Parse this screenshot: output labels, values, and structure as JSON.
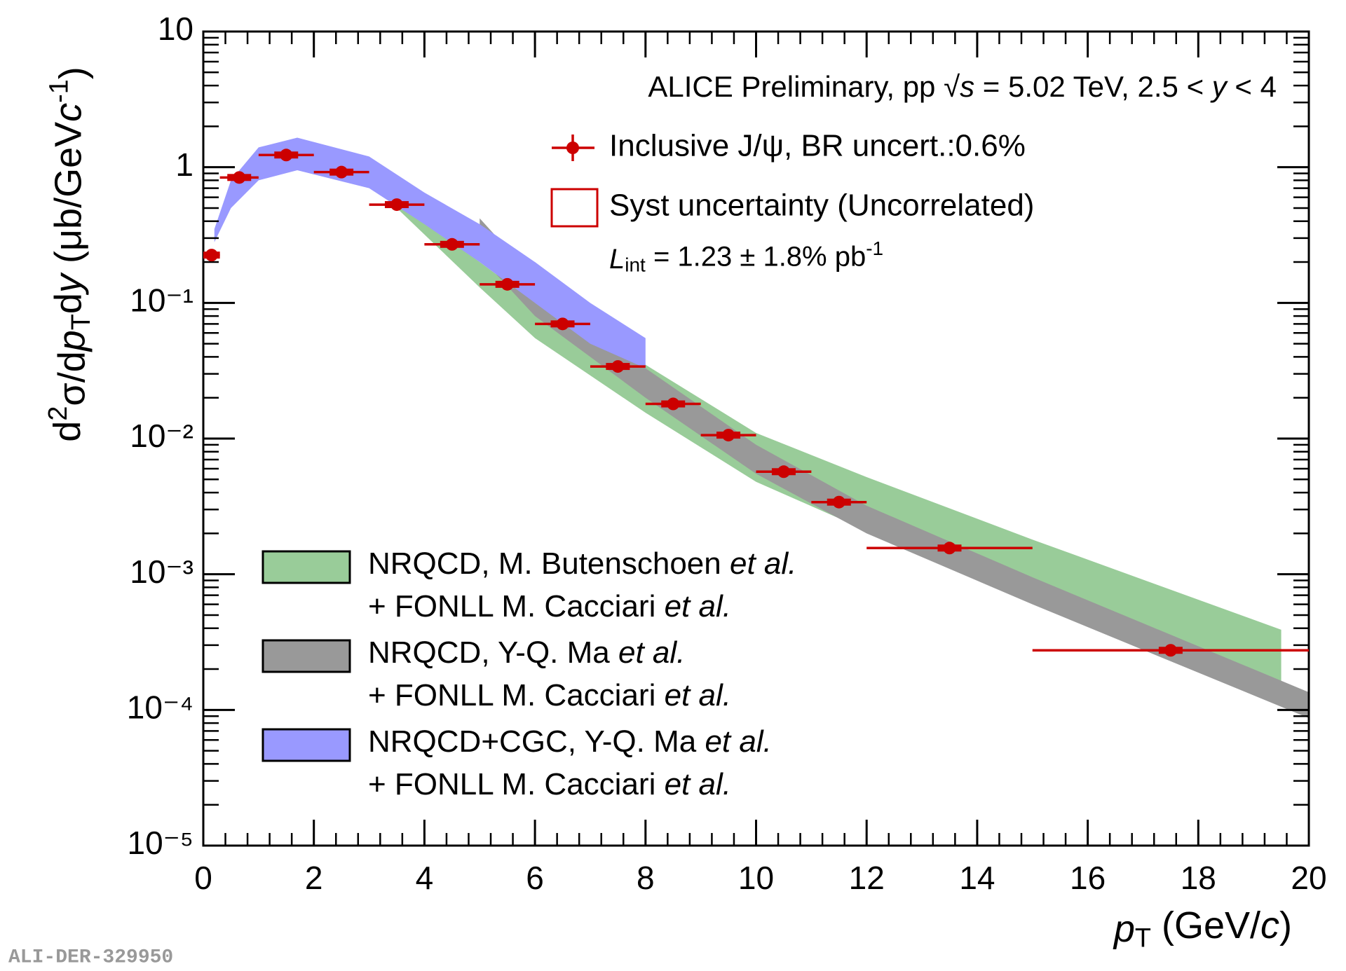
{
  "chart_data": {
    "type": "scatter",
    "annotation": [
      "ALICE Preliminary, pp ",
      "√",
      "s",
      " = 5.02 TeV, 2.5 < ",
      "y",
      " < 4"
    ],
    "lumi": [
      "L",
      "int",
      " = 1.23 ± 1.8% pb",
      "-1"
    ],
    "ylabel": [
      "d",
      "2",
      "σ/d",
      "p",
      "T",
      "d",
      "y",
      " (μb/GeV",
      "c",
      "-1",
      ")"
    ],
    "xlabel": [
      "p",
      "T",
      " (GeV/",
      "c",
      ")"
    ],
    "watermark": "ALI-DER-329950",
    "xlim": [
      0,
      20
    ],
    "xticks": [
      0,
      2,
      4,
      6,
      8,
      10,
      12,
      14,
      16,
      18,
      20
    ],
    "ylim": [
      1e-05,
      10
    ],
    "log_y": true,
    "yticks": [
      {
        "value": 1e-05,
        "label": "10⁻⁵"
      },
      {
        "value": 0.0001,
        "label": "10⁻⁴"
      },
      {
        "value": 0.001,
        "label": "10⁻³"
      },
      {
        "value": 0.01,
        "label": "10⁻²"
      },
      {
        "value": 0.1,
        "label": "10⁻¹"
      },
      1,
      10
    ],
    "series": [
      {
        "name": "Inclusive J/ψ, BR uncert.:0.6%",
        "color": "#cc0000",
        "x": [
          0.15,
          0.65,
          1.5,
          2.5,
          3.5,
          4.5,
          5.5,
          6.5,
          7.5,
          8.5,
          9.5,
          10.5,
          11.5,
          13.5,
          17.5
        ],
        "xerr": [
          0.15,
          0.35,
          0.5,
          0.5,
          0.5,
          0.5,
          0.5,
          0.5,
          0.5,
          0.5,
          0.5,
          0.5,
          0.5,
          1.5,
          2.5
        ],
        "values": [
          0.225,
          0.84,
          1.23,
          0.92,
          0.53,
          0.27,
          0.137,
          0.07,
          0.034,
          0.018,
          0.0106,
          0.0057,
          0.0034,
          0.00156,
          0.000275
        ]
      }
    ],
    "syst_label": "Syst uncertainty (Uncorrelated)",
    "bands": [
      {
        "name": [
          "NRQCD, M. Butenschoen et al.",
          "+ FONLL M. Cacciari et al."
        ],
        "color": "#99cc99",
        "x": [
          3.5,
          5,
          6,
          8,
          10,
          12,
          15,
          19.5
        ],
        "upper": [
          0.55,
          0.2,
          0.1,
          0.035,
          0.011,
          0.0052,
          0.0018,
          0.00039
        ],
        "lower": [
          0.5,
          0.13,
          0.055,
          0.0155,
          0.0048,
          0.0021,
          0.0007,
          0.000155
        ]
      },
      {
        "name": [
          "NRQCD, Y-Q. Ma et al.",
          "+ FONLL M. Cacciari et al."
        ],
        "color": "#999999",
        "x": [
          5,
          6,
          8,
          10,
          12,
          15,
          20
        ],
        "upper": [
          0.42,
          0.15,
          0.033,
          0.009,
          0.0032,
          0.00095,
          0.000135
        ],
        "lower": [
          0.22,
          0.08,
          0.02,
          0.0055,
          0.002,
          0.0006,
          8.7e-05
        ]
      },
      {
        "name": [
          "NRQCD+CGC, Y-Q. Ma et al.",
          "+ FONLL M. Cacciari et al."
        ],
        "color": "#9999ff",
        "x": [
          0.2,
          0.5,
          1,
          1.7,
          3,
          4,
          5,
          6,
          7,
          8
        ],
        "upper": [
          0.35,
          0.8,
          1.4,
          1.65,
          1.2,
          0.65,
          0.38,
          0.2,
          0.1,
          0.055
        ],
        "lower": [
          0.28,
          0.5,
          0.8,
          0.95,
          0.7,
          0.38,
          0.2,
          0.1,
          0.05,
          0.033
        ]
      }
    ]
  }
}
